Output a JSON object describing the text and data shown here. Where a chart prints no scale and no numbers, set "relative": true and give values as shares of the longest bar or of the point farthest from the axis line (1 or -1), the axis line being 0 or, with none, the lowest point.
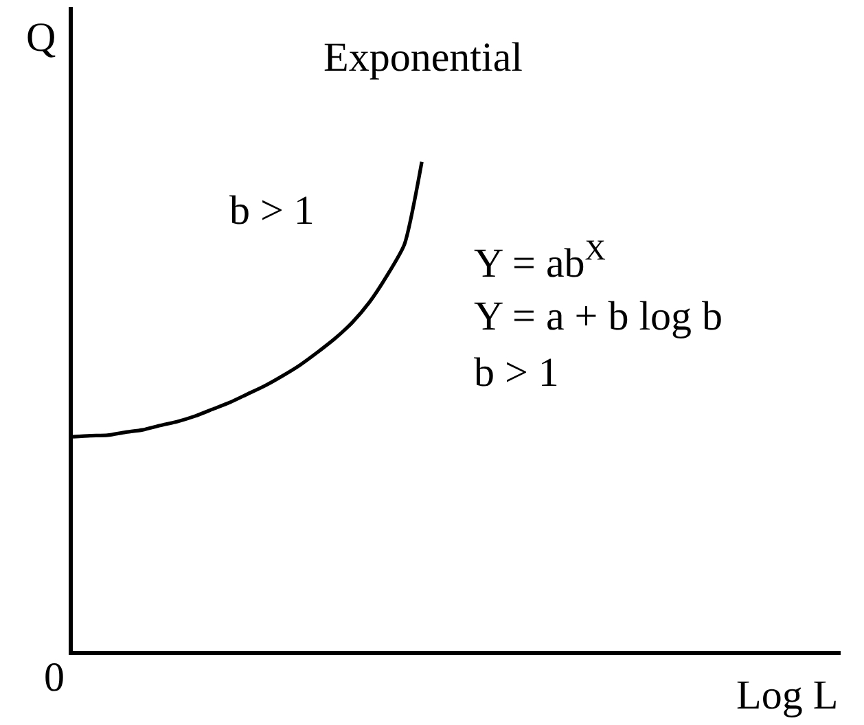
{
  "chart_data": {
    "type": "line",
    "title": "Exponential",
    "xlabel": "Log L",
    "ylabel": "Q",
    "relative": true,
    "categories": [
      null,
      null,
      null,
      null,
      null,
      null,
      null,
      null,
      null,
      null,
      null,
      null,
      null,
      null,
      null,
      null,
      null,
      null,
      null,
      null,
      null,
      null,
      null,
      null,
      null,
      null,
      null,
      null,
      null,
      null,
      null,
      null,
      null,
      null,
      null,
      null,
      null,
      null,
      null,
      null,
      null,
      null,
      null,
      null,
      null
    ],
    "series": [
      {
        "name": "b > 1",
        "color": "#000000",
        "values": [
          0.438,
          0.44,
          0.441,
          0.447,
          0.452,
          0.461,
          0.469,
          0.48,
          0.494,
          0.508,
          0.525,
          0.542,
          0.562,
          0.584,
          0.61,
          0.638,
          0.671,
          0.713,
          0.767,
          0.831,
          1,
          null,
          null,
          null,
          null,
          null,
          null,
          null,
          null,
          null,
          null,
          null,
          null,
          null,
          null,
          null,
          null,
          null,
          null,
          null,
          null,
          null,
          null,
          null,
          null
        ]
      }
    ],
    "annotations": [
      "Y = ab$^{X}$",
      "Y = a + b log b",
      "b > 1",
      "0"
    ]
  }
}
